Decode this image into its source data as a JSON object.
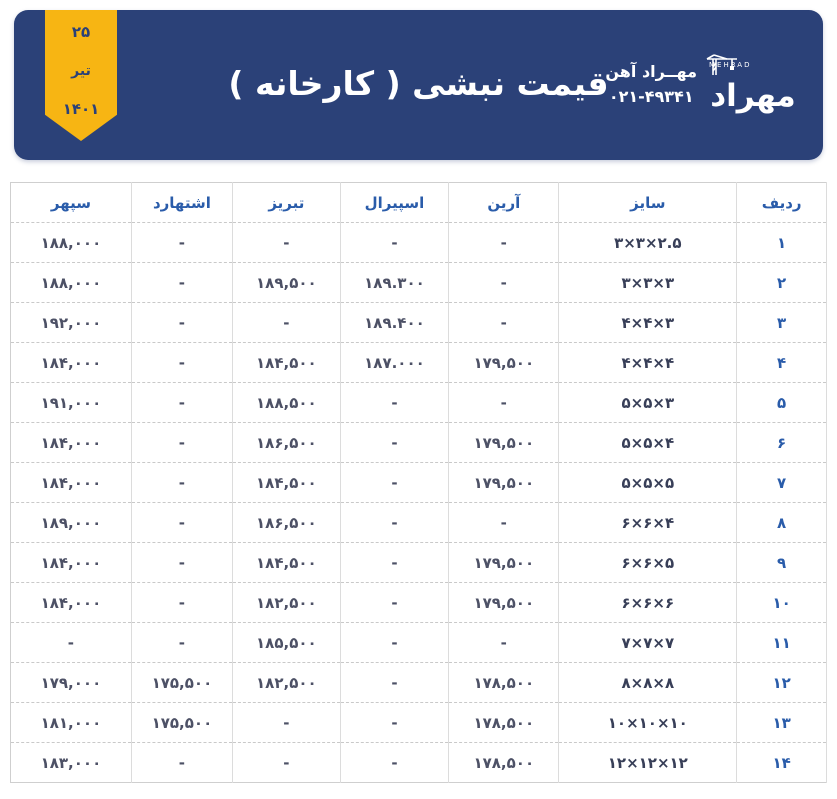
{
  "header": {
    "title": "قیمت نبشی ( کارخانه )",
    "date": {
      "day": "۲۵",
      "month": "تیر",
      "year": "۱۴۰۱"
    },
    "brand": {
      "logo_word": "مهراد",
      "logo_latin": "MEHRAD",
      "company": "مهــراد آهن",
      "phone": "۰۲۱-۴۹۳۴۱"
    },
    "colors": {
      "header_bg": "#2b4178",
      "ribbon": "#f7b513",
      "title_text": "#ffffff",
      "column_header_text": "#2a5caa"
    }
  },
  "table": {
    "columns": [
      "ردیف",
      "سایز",
      "آرین",
      "اسپیرال",
      "تبریز",
      "اشتهارد",
      "سپهر"
    ],
    "rows": [
      [
        "۱",
        "۳×۳×۲.۵",
        "-",
        "-",
        "-",
        "-",
        "۱۸۸,۰۰۰"
      ],
      [
        "۲",
        "۳×۳×۳",
        "-",
        "۱۸۹.۳۰۰",
        "۱۸۹,۵۰۰",
        "-",
        "۱۸۸,۰۰۰"
      ],
      [
        "۳",
        "۴×۴×۳",
        "-",
        "۱۸۹.۴۰۰",
        "-",
        "-",
        "۱۹۲,۰۰۰"
      ],
      [
        "۴",
        "۴×۴×۴",
        "۱۷۹,۵۰۰",
        "۱۸۷.۰۰۰",
        "۱۸۴,۵۰۰",
        "-",
        "۱۸۴,۰۰۰"
      ],
      [
        "۵",
        "۵×۵×۳",
        "-",
        "-",
        "۱۸۸,۵۰۰",
        "-",
        "۱۹۱,۰۰۰"
      ],
      [
        "۶",
        "۵×۵×۴",
        "۱۷۹,۵۰۰",
        "-",
        "۱۸۶,۵۰۰",
        "-",
        "۱۸۴,۰۰۰"
      ],
      [
        "۷",
        "۵×۵×۵",
        "۱۷۹,۵۰۰",
        "-",
        "۱۸۴,۵۰۰",
        "-",
        "۱۸۴,۰۰۰"
      ],
      [
        "۸",
        "۶×۶×۴",
        "-",
        "-",
        "۱۸۶,۵۰۰",
        "-",
        "۱۸۹,۰۰۰"
      ],
      [
        "۹",
        "۶×۶×۵",
        "۱۷۹,۵۰۰",
        "-",
        "۱۸۴,۵۰۰",
        "-",
        "۱۸۴,۰۰۰"
      ],
      [
        "۱۰",
        "۶×۶×۶",
        "۱۷۹,۵۰۰",
        "-",
        "۱۸۲,۵۰۰",
        "-",
        "۱۸۴,۰۰۰"
      ],
      [
        "۱۱",
        "۷×۷×۷",
        "-",
        "-",
        "۱۸۵,۵۰۰",
        "-",
        "-"
      ],
      [
        "۱۲",
        "۸×۸×۸",
        "۱۷۸,۵۰۰",
        "-",
        "۱۸۲,۵۰۰",
        "۱۷۵,۵۰۰",
        "۱۷۹,۰۰۰"
      ],
      [
        "۱۳",
        "۱۰×۱۰×۱۰",
        "۱۷۸,۵۰۰",
        "-",
        "-",
        "۱۷۵,۵۰۰",
        "۱۸۱,۰۰۰"
      ],
      [
        "۱۴",
        "۱۲×۱۲×۱۲",
        "۱۷۸,۵۰۰",
        "-",
        "-",
        "-",
        "۱۸۳,۰۰۰"
      ]
    ]
  }
}
